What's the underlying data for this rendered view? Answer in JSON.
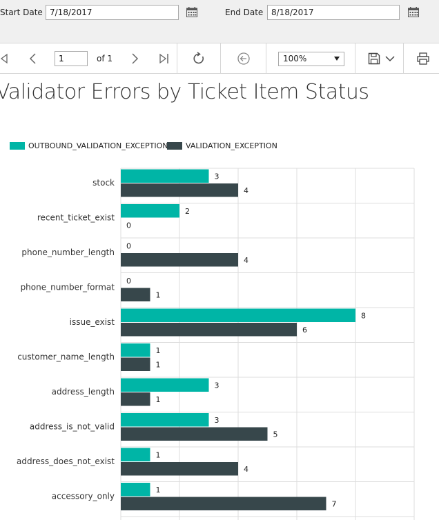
{
  "params": {
    "start_label": "Start Date",
    "start_value": "7/18/2017",
    "end_label": "End Date",
    "end_value": "8/18/2017"
  },
  "toolbar": {
    "page_value": "1",
    "of_label": "of 1",
    "zoom_value": "100%"
  },
  "report": {
    "title": "Validator Errors by Ticket Item Status"
  },
  "colors": {
    "outbound": "#00b5a6",
    "validation": "#37474b",
    "grid": "#dcdcdc"
  },
  "chart_data": {
    "type": "bar",
    "orientation": "horizontal",
    "categories": [
      "stock",
      "recent_ticket_exist",
      "phone_number_length",
      "phone_number_format",
      "issue_exist",
      "customer_name_length",
      "address_length",
      "address_is_not_valid",
      "address_does_not_exist",
      "accessory_only"
    ],
    "series": [
      {
        "name": "OUTBOUND_VALIDATION_EXCEPTION",
        "values": [
          3,
          2,
          0,
          0,
          8,
          1,
          3,
          3,
          1,
          1
        ]
      },
      {
        "name": "VALIDATION_EXCEPTION",
        "values": [
          4,
          0,
          4,
          1,
          6,
          1,
          1,
          5,
          4,
          7
        ]
      }
    ],
    "xlim": [
      0,
      10
    ],
    "xticks": [
      "0",
      "2",
      "4",
      "6",
      "8",
      "10"
    ],
    "grid": true,
    "legend_position": "top-left"
  }
}
